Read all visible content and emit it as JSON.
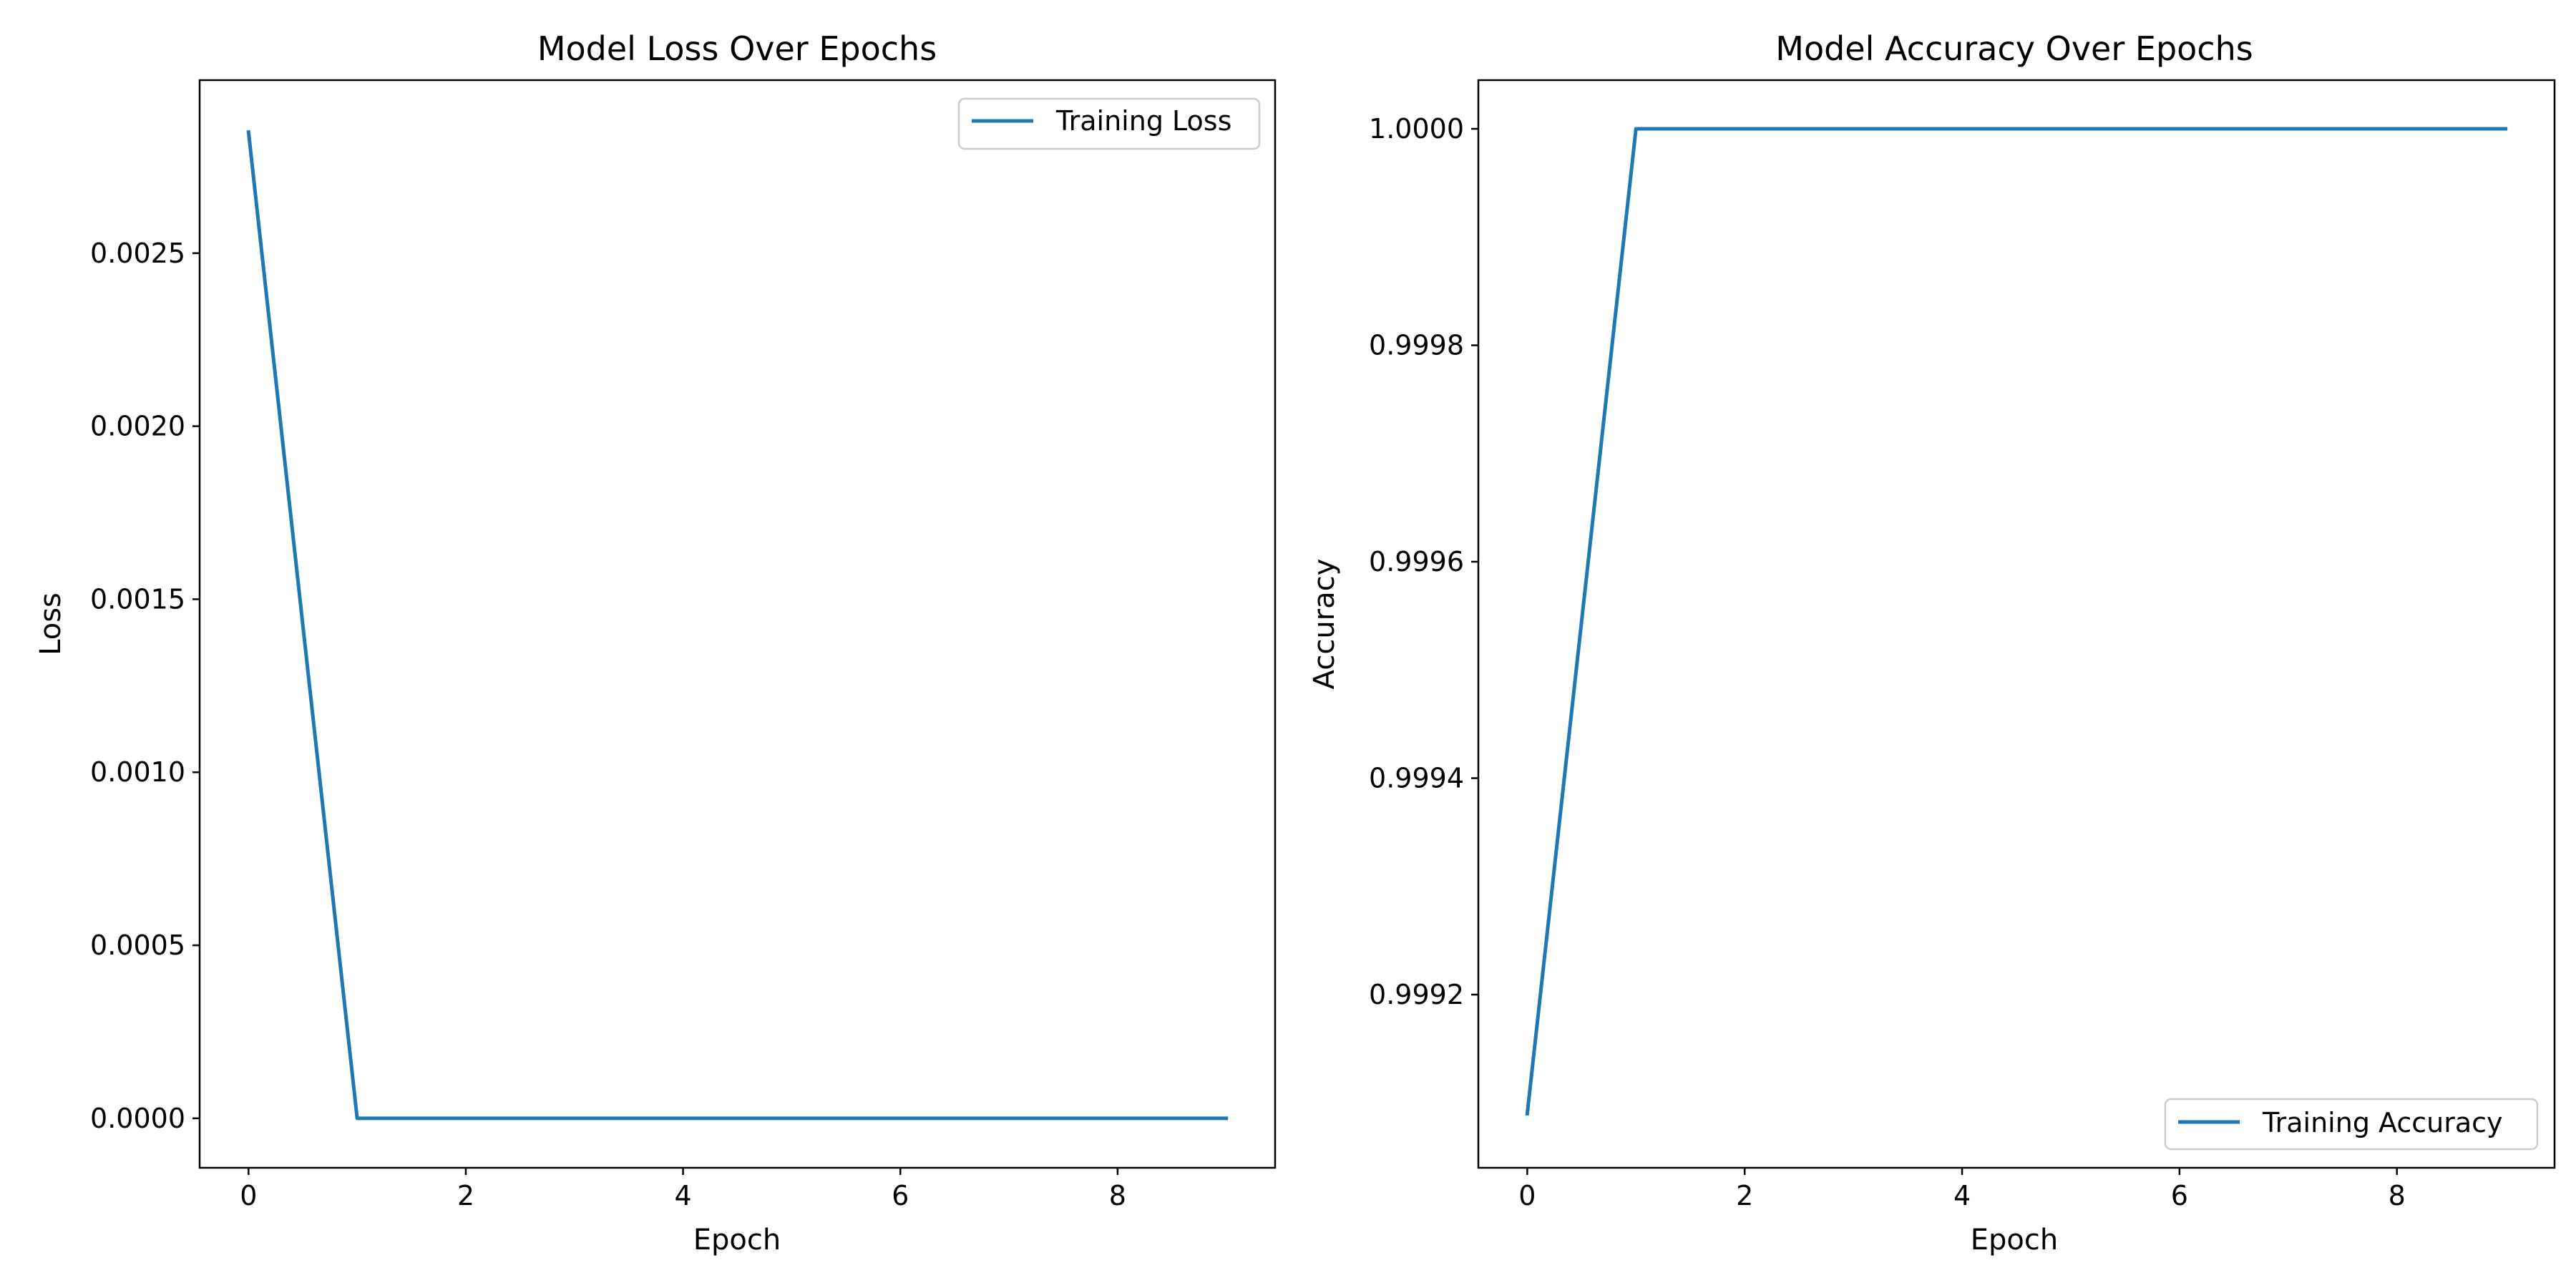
{
  "chart_data": [
    {
      "type": "line",
      "title": "Model Loss Over Epochs",
      "xlabel": "Epoch",
      "ylabel": "Loss",
      "xlim": [
        -0.45,
        9.45
      ],
      "ylim": [
        -0.000143,
        0.003
      ],
      "xticks": [
        0,
        2,
        4,
        6,
        8
      ],
      "xtick_labels": [
        "0",
        "2",
        "4",
        "6",
        "8"
      ],
      "yticks": [
        0.0,
        0.0005,
        0.001,
        0.0015,
        0.002,
        0.0025
      ],
      "ytick_labels": [
        "0.0000",
        "0.0005",
        "0.0010",
        "0.0015",
        "0.0020",
        "0.0025"
      ],
      "grid": false,
      "legend_position": "upper right",
      "x": [
        0,
        1,
        2,
        3,
        4,
        5,
        6,
        7,
        8,
        9
      ],
      "series": [
        {
          "name": "Training Loss",
          "color": "#1f77b4",
          "values": [
            0.00285,
            0.0,
            0.0,
            0.0,
            0.0,
            0.0,
            0.0,
            0.0,
            0.0,
            0.0
          ]
        }
      ]
    },
    {
      "type": "line",
      "title": "Model Accuracy Over Epochs",
      "xlabel": "Epoch",
      "ylabel": "Accuracy",
      "xlim": [
        -0.45,
        9.45
      ],
      "ylim": [
        0.99904,
        1.000045
      ],
      "xticks": [
        0,
        2,
        4,
        6,
        8
      ],
      "xtick_labels": [
        "0",
        "2",
        "4",
        "6",
        "8"
      ],
      "yticks": [
        0.9992,
        0.9994,
        0.9996,
        0.9998,
        1.0
      ],
      "ytick_labels": [
        "0.9992",
        "0.9994",
        "0.9996",
        "0.9998",
        "1.0000"
      ],
      "grid": false,
      "legend_position": "lower right",
      "x": [
        0,
        1,
        2,
        3,
        4,
        5,
        6,
        7,
        8,
        9
      ],
      "series": [
        {
          "name": "Training Accuracy",
          "color": "#1f77b4",
          "values": [
            0.99909,
            1.0,
            1.0,
            1.0,
            1.0,
            1.0,
            1.0,
            1.0,
            1.0,
            1.0
          ]
        }
      ]
    }
  ]
}
